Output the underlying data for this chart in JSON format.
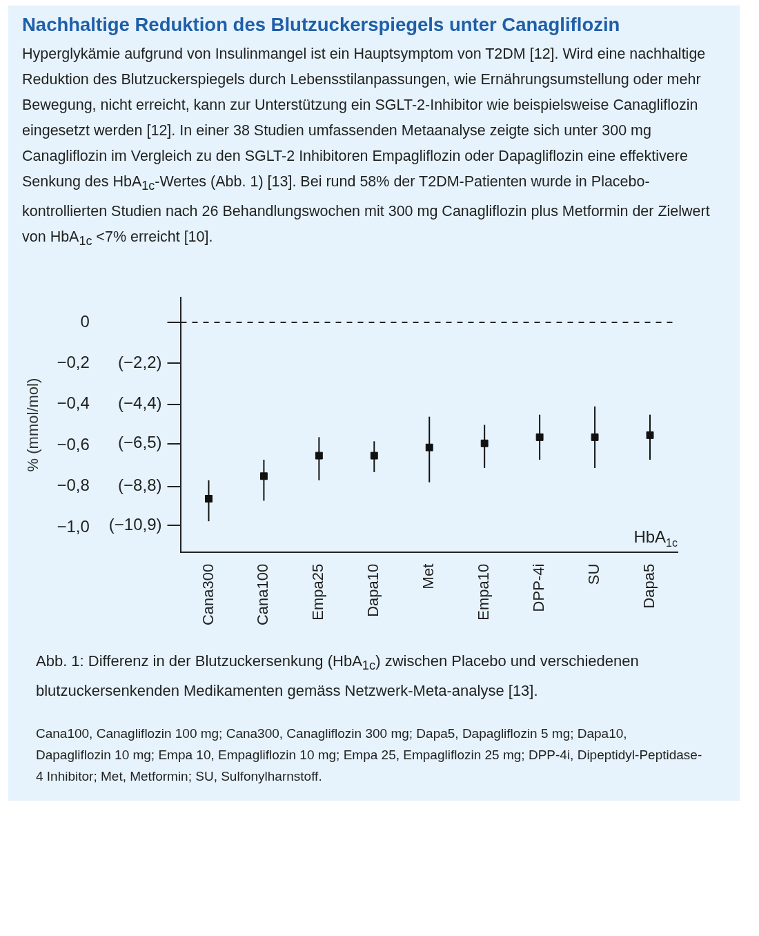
{
  "chart_data": {
    "type": "scatter",
    "title": "Nachhaltige Reduktion des Blutzuckerspiegels unter Canagliflozin",
    "subtitle": "Hyperglykämie aufgrund von Insulinmangel ist ein Hauptsymptom von T2DM [12]. Wird eine nachhaltige Reduktion des Blutzuckerspiegels durch Lebensstilanpassungen, wie Ernährungsumstellung oder mehr Bewegung, nicht erreicht, kann zur Unterstützung ein SGLT-2-Inhibitor wie beispielsweise Canagliflozin eingesetzt werden [12]. In einer 38 Studien umfassenden Metaanalyse zeigte sich unter 300 mg Canagliflozin im Vergleich zu den SGLT-2 Inhibitoren Empagliflozin oder Dapagliflozin eine effektivere Senkung des HbA$_{1c}$-Wertes (Abb. 1) [13]. Bei rund 58% der T2DM-Patienten wurde in Placebo-kontrollierten Studien nach 26 Behandlungswochen mit 300 mg Canagliflozin plus Metformin der Zielwert von HbA$_{1c}$ <7% erreicht [10].",
    "xlabel": "HbA$_{1c}$",
    "ylabel": "% (mmol/mol)",
    "categories": [
      "Cana300",
      "Cana100",
      "Empa25",
      "Dapa10",
      "Met",
      "Empa10",
      "DPP-4i",
      "SU",
      "Dapa5"
    ],
    "values": [
      -0.86,
      -0.75,
      -0.65,
      -0.65,
      -0.61,
      -0.59,
      -0.56,
      -0.56,
      -0.55
    ],
    "errors": [
      [
        -0.97,
        -0.77
      ],
      [
        -0.87,
        -0.67
      ],
      [
        -0.77,
        -0.56
      ],
      [
        -0.73,
        -0.58
      ],
      [
        -0.78,
        -0.46
      ],
      [
        -0.71,
        -0.5
      ],
      [
        -0.67,
        -0.45
      ],
      [
        -0.71,
        -0.41
      ],
      [
        -0.67,
        -0.45
      ]
    ],
    "color": "#111111",
    "marker": "square",
    "ylim": [
      -1.12,
      0.12
    ],
    "yticks": [
      {
        "value": 0,
        "label": "0"
      },
      {
        "value": -0.2,
        "label": "−0,2"
      },
      {
        "value": -0.4,
        "label": "−0,4"
      },
      {
        "value": -0.6,
        "label": "−0,6"
      },
      {
        "value": -0.8,
        "label": "−0,8"
      },
      {
        "value": -1.0,
        "label": "−1,0"
      }
    ],
    "y2lim": [
      -12.32,
      1.32
    ],
    "y2ticks": [
      {
        "value": 0,
        "label": null
      },
      {
        "value": -2.2,
        "label": "(−2,2)"
      },
      {
        "value": -4.4,
        "label": "(−4,4)"
      },
      {
        "value": -6.5,
        "label": "(−6,5)"
      },
      {
        "value": -8.8,
        "label": "(−8,8)"
      },
      {
        "value": -10.9,
        "label": "(−10,9)"
      }
    ],
    "ref_lines": [
      {
        "axis": "y",
        "value": 0,
        "line_style": "dashed",
        "color": "#222222"
      }
    ],
    "grid": false,
    "legend": false,
    "annotations": [
      "Abb. 1: Differenz in der Blutzuckersenkung (HbA$_{1c}$) zwischen Placebo und verschiedenen blutzuckersenkenden Medikamenten gemäss Netzwerk-Meta-analyse [13].",
      "Cana100, Canagliflozin 100 mg; Cana300, Canagliflozin 300 mg; Dapa5, Dapagliflozin 5 mg; Dapa10, Dapagliflozin 10 mg; Empa 10, Empagliflozin 10 mg; Empa 25, Empagliflozin 25 mg; DPP-4i, Dipeptidyl-Peptidase-4 Inhibitor; Met, Metformin; SU, Sulfonylharnstoff."
    ]
  }
}
